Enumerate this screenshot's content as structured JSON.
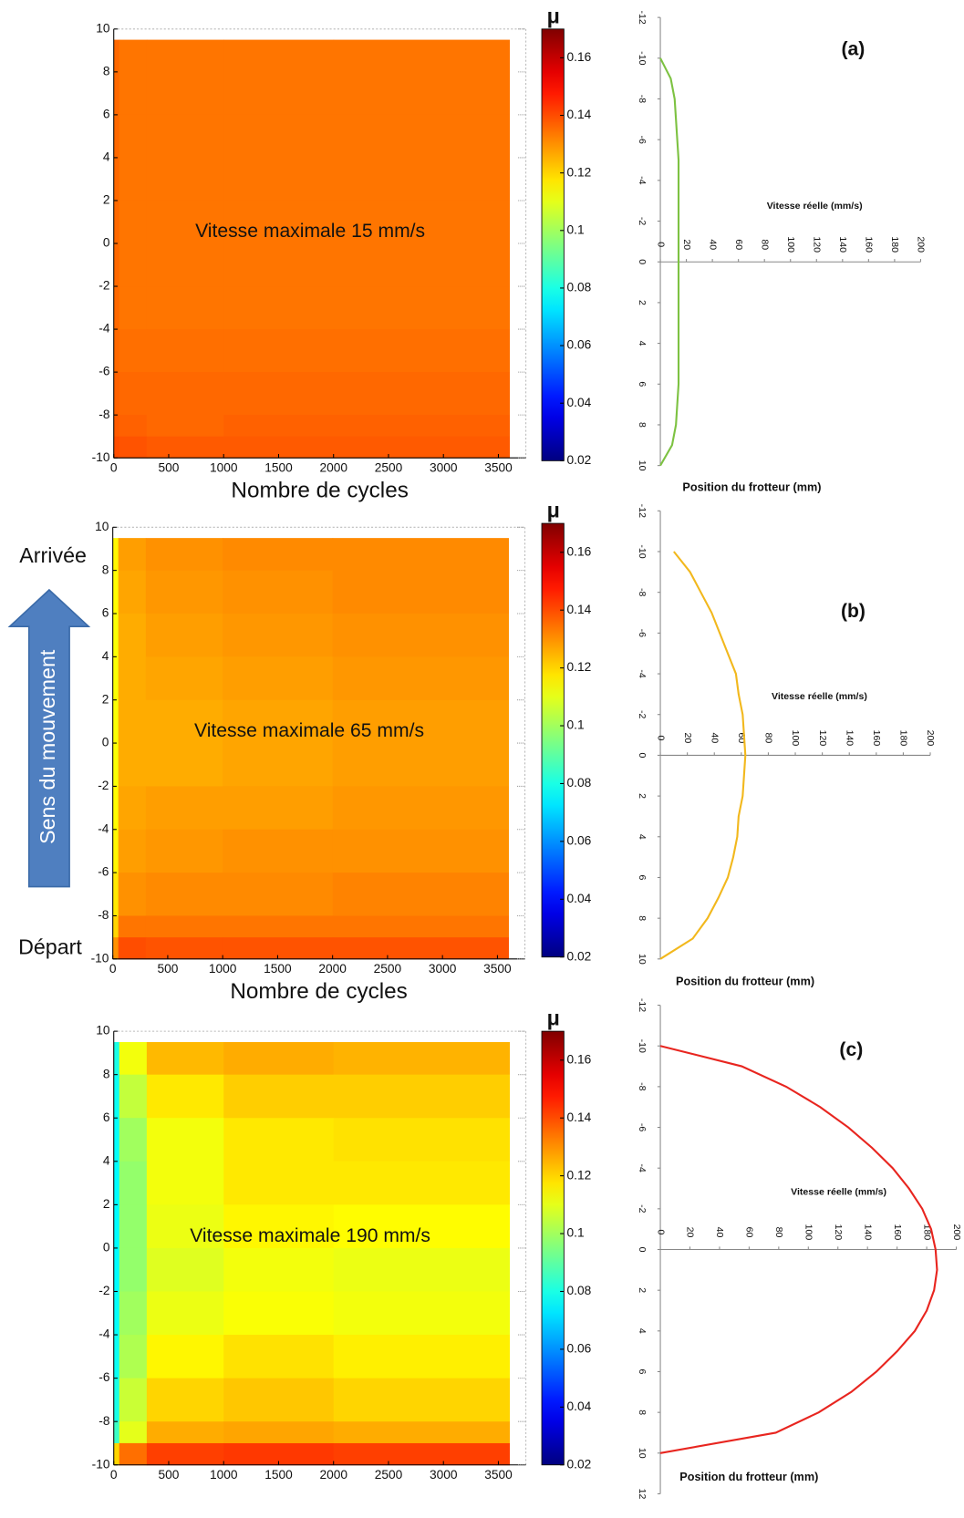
{
  "labels": {
    "arrival": "Arrivée",
    "departure": "Départ",
    "direction": "Sens du mouvement"
  },
  "chart_data": [
    {
      "type": "heatmap",
      "annotation": "Vitesse maximale 15 mm/s",
      "xlabel": "Nombre de cycles",
      "colorbar_label": "μ",
      "colormap": "jet",
      "xlim": [
        0,
        3750
      ],
      "xticks": [
        0,
        500,
        1000,
        1500,
        2000,
        2500,
        3000,
        3500
      ],
      "ylim": [
        -10,
        10
      ],
      "yticks": [
        -10,
        -8,
        -6,
        -4,
        -2,
        0,
        2,
        4,
        6,
        8,
        10
      ],
      "zlim": [
        0.02,
        0.17
      ],
      "zticks": [
        0.02,
        0.04,
        0.06,
        0.08,
        0.1,
        0.12,
        0.14,
        0.16
      ],
      "x_bins": [
        0,
        50,
        300,
        1000,
        2000,
        3600
      ],
      "y_bins": [
        9.5,
        8,
        6,
        4,
        2,
        0,
        -2,
        -4,
        -6,
        -8,
        -9,
        -10
      ],
      "z": [
        [
          0.136,
          0.134,
          0.134,
          0.134,
          0.134
        ],
        [
          0.136,
          0.134,
          0.134,
          0.134,
          0.134
        ],
        [
          0.136,
          0.134,
          0.134,
          0.134,
          0.134
        ],
        [
          0.136,
          0.134,
          0.134,
          0.134,
          0.134
        ],
        [
          0.136,
          0.134,
          0.134,
          0.134,
          0.134
        ],
        [
          0.136,
          0.134,
          0.134,
          0.134,
          0.134
        ],
        [
          0.136,
          0.134,
          0.134,
          0.134,
          0.134
        ],
        [
          0.136,
          0.135,
          0.135,
          0.135,
          0.135
        ],
        [
          0.137,
          0.136,
          0.136,
          0.136,
          0.136
        ],
        [
          0.138,
          0.137,
          0.136,
          0.137,
          0.137
        ],
        [
          0.14,
          0.139,
          0.138,
          0.138,
          0.138
        ]
      ]
    },
    {
      "type": "heatmap",
      "annotation": "Vitesse maximale 65 mm/s",
      "xlabel": "Nombre de cycles",
      "colorbar_label": "μ",
      "colormap": "jet",
      "xlim": [
        0,
        3750
      ],
      "xticks": [
        0,
        500,
        1000,
        1500,
        2000,
        2500,
        3000,
        3500
      ],
      "ylim": [
        -10,
        10
      ],
      "yticks": [
        -10,
        -8,
        -6,
        -4,
        -2,
        0,
        2,
        4,
        6,
        8,
        10
      ],
      "zlim": [
        0.02,
        0.17
      ],
      "zticks": [
        0.02,
        0.04,
        0.06,
        0.08,
        0.1,
        0.12,
        0.14,
        0.16
      ],
      "x_bins": [
        0,
        50,
        300,
        1000,
        2000,
        3600
      ],
      "y_bins": [
        9.5,
        8,
        6,
        4,
        2,
        0,
        -2,
        -4,
        -6,
        -8,
        -9,
        -10
      ],
      "z": [
        [
          0.115,
          0.128,
          0.13,
          0.131,
          0.131
        ],
        [
          0.114,
          0.127,
          0.129,
          0.13,
          0.131
        ],
        [
          0.113,
          0.126,
          0.128,
          0.129,
          0.13
        ],
        [
          0.113,
          0.126,
          0.127,
          0.128,
          0.129
        ],
        [
          0.113,
          0.126,
          0.126,
          0.127,
          0.128
        ],
        [
          0.113,
          0.126,
          0.126,
          0.127,
          0.128
        ],
        [
          0.114,
          0.127,
          0.128,
          0.128,
          0.129
        ],
        [
          0.115,
          0.128,
          0.129,
          0.13,
          0.13
        ],
        [
          0.117,
          0.13,
          0.131,
          0.131,
          0.132
        ],
        [
          0.12,
          0.134,
          0.134,
          0.134,
          0.134
        ],
        [
          0.13,
          0.14,
          0.139,
          0.139,
          0.139
        ]
      ]
    },
    {
      "type": "heatmap",
      "annotation": "Vitesse maximale 190 mm/s",
      "colorbar_label": "μ",
      "colormap": "jet",
      "xlim": [
        0,
        3750
      ],
      "xticks": [
        0,
        500,
        1000,
        1500,
        2000,
        2500,
        3000,
        3500
      ],
      "ylim": [
        -10,
        10
      ],
      "yticks": [
        -10,
        -8,
        -6,
        -4,
        -2,
        0,
        2,
        4,
        6,
        8,
        10
      ],
      "zlim": [
        0.02,
        0.17
      ],
      "zticks": [
        0.02,
        0.04,
        0.06,
        0.08,
        0.1,
        0.12,
        0.14,
        0.16
      ],
      "x_bins": [
        0,
        50,
        300,
        1000,
        2000,
        3600
      ],
      "y_bins": [
        9.5,
        8,
        6,
        4,
        2,
        0,
        -2,
        -4,
        -6,
        -8,
        -9,
        -10
      ],
      "z": [
        [
          0.08,
          0.112,
          0.124,
          0.126,
          0.125
        ],
        [
          0.078,
          0.105,
          0.117,
          0.121,
          0.121
        ],
        [
          0.077,
          0.1,
          0.112,
          0.117,
          0.118
        ],
        [
          0.076,
          0.098,
          0.112,
          0.117,
          0.117
        ],
        [
          0.076,
          0.098,
          0.111,
          0.115,
          0.114
        ],
        [
          0.076,
          0.098,
          0.109,
          0.112,
          0.111
        ],
        [
          0.077,
          0.1,
          0.111,
          0.113,
          0.112
        ],
        [
          0.078,
          0.102,
          0.115,
          0.118,
          0.116
        ],
        [
          0.08,
          0.106,
          0.12,
          0.122,
          0.12
        ],
        [
          0.085,
          0.11,
          0.126,
          0.127,
          0.126
        ],
        [
          0.12,
          0.135,
          0.142,
          0.143,
          0.142
        ]
      ]
    },
    {
      "type": "line",
      "panel_label": "(a)",
      "xlabel": "Position du frotteur (mm)",
      "ylabel": "Vitesse réelle (mm/s)",
      "color": "#7dc242",
      "xlim": [
        -12,
        10
      ],
      "xticks": [
        -12,
        -10,
        -8,
        -6,
        -4,
        -2,
        0,
        2,
        4,
        6,
        8,
        10
      ],
      "ylim": [
        0,
        200
      ],
      "yticks": [
        0,
        20,
        40,
        60,
        80,
        100,
        120,
        140,
        160,
        180,
        200
      ],
      "x": [
        -10,
        -9,
        -8,
        -7,
        -6,
        -5,
        -4,
        -3,
        -2,
        -1,
        0,
        1,
        2,
        3,
        4,
        5,
        6,
        7,
        8,
        9,
        10
      ],
      "values": [
        0,
        8,
        11,
        12,
        13,
        14,
        14,
        14,
        14,
        14,
        14,
        14,
        14,
        14,
        14,
        14,
        14,
        13,
        12,
        9,
        0
      ]
    },
    {
      "type": "line",
      "panel_label": "(b)",
      "xlabel": "Position du frotteur (mm)",
      "ylabel": "Vitesse réelle (mm/s)",
      "color": "#f2b81d",
      "xlim": [
        -12,
        10
      ],
      "xticks": [
        -12,
        -10,
        -8,
        -6,
        -4,
        -2,
        0,
        2,
        4,
        6,
        8,
        10
      ],
      "ylim": [
        0,
        200
      ],
      "yticks": [
        0,
        20,
        40,
        60,
        80,
        100,
        120,
        140,
        160,
        180,
        200
      ],
      "x": [
        -10,
        -9,
        -8,
        -7,
        -6,
        -5,
        -4,
        -3,
        -2,
        -1,
        0,
        1,
        2,
        3,
        4,
        5,
        6,
        7,
        8,
        9,
        10
      ],
      "values": [
        10,
        22,
        30,
        38,
        44,
        50,
        56,
        58,
        61,
        62,
        63,
        62,
        61,
        58,
        57,
        54,
        50,
        43,
        35,
        24,
        0
      ]
    },
    {
      "type": "line",
      "panel_label": "(c)",
      "xlabel": "Position du frotteur (mm)",
      "ylabel": "Vitesse réelle (mm/s)",
      "color": "#e8251f",
      "xlim": [
        -12,
        12
      ],
      "xticks": [
        -12,
        -10,
        -8,
        -6,
        -4,
        -2,
        0,
        2,
        4,
        6,
        8,
        10,
        12
      ],
      "ylim": [
        0,
        200
      ],
      "yticks": [
        0,
        20,
        40,
        60,
        80,
        100,
        120,
        140,
        160,
        180,
        200
      ],
      "x": [
        -10,
        -9,
        -8,
        -7,
        -6,
        -5,
        -4,
        -3,
        -2,
        -1,
        0,
        1,
        2,
        3,
        4,
        5,
        6,
        7,
        8,
        9,
        10
      ],
      "values": [
        0,
        55,
        85,
        108,
        127,
        143,
        157,
        168,
        177,
        183,
        186,
        187,
        185,
        180,
        172,
        160,
        146,
        129,
        107,
        78,
        0
      ]
    }
  ]
}
